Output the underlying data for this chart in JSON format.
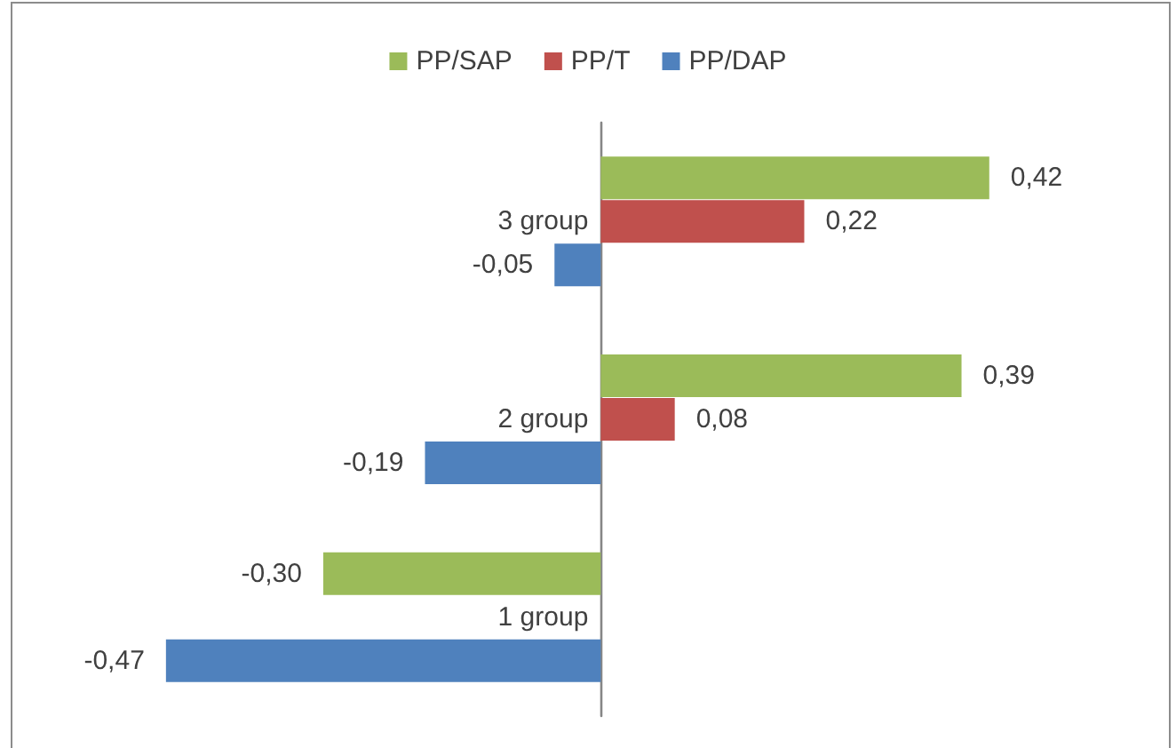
{
  "chart_data": {
    "type": "bar",
    "orientation": "horizontal",
    "categories": [
      "3 group",
      "2 group",
      "1 group"
    ],
    "series": [
      {
        "name": "PP/SAP",
        "color": "#9bbb59",
        "values": [
          0.42,
          0.39,
          -0.3
        ],
        "value_labels": [
          "0,42",
          "0,39",
          "-0,30"
        ]
      },
      {
        "name": "PP/T",
        "color": "#c0504d",
        "values": [
          0.22,
          0.08,
          null
        ],
        "value_labels": [
          "0,22",
          "0,08",
          null
        ]
      },
      {
        "name": "PP/DAP",
        "color": "#4f81bd",
        "values": [
          -0.05,
          -0.19,
          -0.47
        ],
        "value_labels": [
          "-0,05",
          "-0,19",
          "-0,47"
        ]
      }
    ],
    "legend": "top",
    "grid": false,
    "tick_labels": "y"
  }
}
